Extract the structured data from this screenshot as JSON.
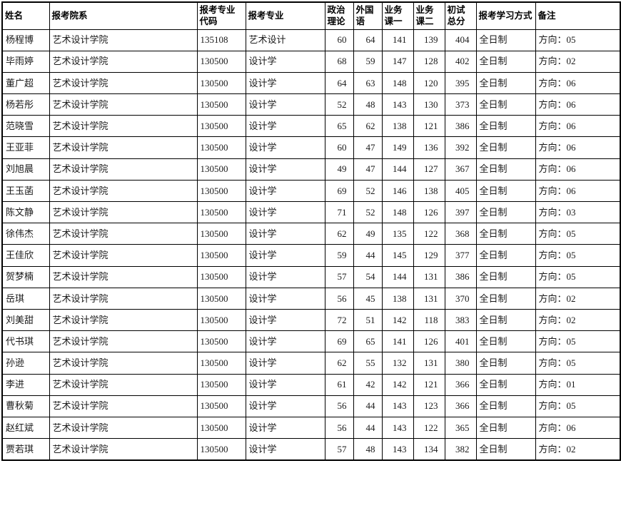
{
  "table": {
    "columns": [
      {
        "key": "name",
        "label": "姓名",
        "numeric": false
      },
      {
        "key": "dept",
        "label": "报考院系",
        "numeric": false
      },
      {
        "key": "major_code",
        "label": "报考专业代码",
        "numeric": false
      },
      {
        "key": "major",
        "label": "报考专业",
        "numeric": false
      },
      {
        "key": "politics",
        "label": "政治理论",
        "numeric": true
      },
      {
        "key": "foreign",
        "label": "外国语",
        "numeric": true
      },
      {
        "key": "subject1",
        "label": "业务课一",
        "numeric": true
      },
      {
        "key": "subject2",
        "label": "业务课二",
        "numeric": true
      },
      {
        "key": "total",
        "label": "初试总分",
        "numeric": true
      },
      {
        "key": "study_mode",
        "label": "报考学习方式",
        "numeric": false
      },
      {
        "key": "remark",
        "label": "备注",
        "numeric": false
      }
    ],
    "rows": [
      [
        "杨程博",
        "艺术设计学院",
        "135108",
        "艺术设计",
        "60",
        "64",
        "141",
        "139",
        "404",
        "全日制",
        "方向：05"
      ],
      [
        "毕雨婷",
        "艺术设计学院",
        "130500",
        "设计学",
        "68",
        "59",
        "147",
        "128",
        "402",
        "全日制",
        "方向：02"
      ],
      [
        "董广超",
        "艺术设计学院",
        "130500",
        "设计学",
        "64",
        "63",
        "148",
        "120",
        "395",
        "全日制",
        "方向：06"
      ],
      [
        "杨若彤",
        "艺术设计学院",
        "130500",
        "设计学",
        "52",
        "48",
        "143",
        "130",
        "373",
        "全日制",
        "方向：06"
      ],
      [
        "范晓雪",
        "艺术设计学院",
        "130500",
        "设计学",
        "65",
        "62",
        "138",
        "121",
        "386",
        "全日制",
        "方向：06"
      ],
      [
        "王亚菲",
        "艺术设计学院",
        "130500",
        "设计学",
        "60",
        "47",
        "149",
        "136",
        "392",
        "全日制",
        "方向：06"
      ],
      [
        "刘旭晨",
        "艺术设计学院",
        "130500",
        "设计学",
        "49",
        "47",
        "144",
        "127",
        "367",
        "全日制",
        "方向：06"
      ],
      [
        "王玉菡",
        "艺术设计学院",
        "130500",
        "设计学",
        "69",
        "52",
        "146",
        "138",
        "405",
        "全日制",
        "方向：06"
      ],
      [
        "陈文静",
        "艺术设计学院",
        "130500",
        "设计学",
        "71",
        "52",
        "148",
        "126",
        "397",
        "全日制",
        "方向：03"
      ],
      [
        "徐伟杰",
        "艺术设计学院",
        "130500",
        "设计学",
        "62",
        "49",
        "135",
        "122",
        "368",
        "全日制",
        "方向：05"
      ],
      [
        "王佳欣",
        "艺术设计学院",
        "130500",
        "设计学",
        "59",
        "44",
        "145",
        "129",
        "377",
        "全日制",
        "方向：05"
      ],
      [
        "贺梦楠",
        "艺术设计学院",
        "130500",
        "设计学",
        "57",
        "54",
        "144",
        "131",
        "386",
        "全日制",
        "方向：05"
      ],
      [
        "岳琪",
        "艺术设计学院",
        "130500",
        "设计学",
        "56",
        "45",
        "138",
        "131",
        "370",
        "全日制",
        "方向：02"
      ],
      [
        "刘美甜",
        "艺术设计学院",
        "130500",
        "设计学",
        "72",
        "51",
        "142",
        "118",
        "383",
        "全日制",
        "方向：02"
      ],
      [
        "代书琪",
        "艺术设计学院",
        "130500",
        "设计学",
        "69",
        "65",
        "141",
        "126",
        "401",
        "全日制",
        "方向：05"
      ],
      [
        "孙逊",
        "艺术设计学院",
        "130500",
        "设计学",
        "62",
        "55",
        "132",
        "131",
        "380",
        "全日制",
        "方向：05"
      ],
      [
        "李进",
        "艺术设计学院",
        "130500",
        "设计学",
        "61",
        "42",
        "142",
        "121",
        "366",
        "全日制",
        "方向：01"
      ],
      [
        "曹秋菊",
        "艺术设计学院",
        "130500",
        "设计学",
        "56",
        "44",
        "143",
        "123",
        "366",
        "全日制",
        "方向：05"
      ],
      [
        "赵红斌",
        "艺术设计学院",
        "130500",
        "设计学",
        "56",
        "44",
        "143",
        "122",
        "365",
        "全日制",
        "方向：06"
      ],
      [
        "贾若琪",
        "艺术设计学院",
        "130500",
        "设计学",
        "57",
        "48",
        "143",
        "134",
        "382",
        "全日制",
        "方向：02"
      ]
    ]
  }
}
